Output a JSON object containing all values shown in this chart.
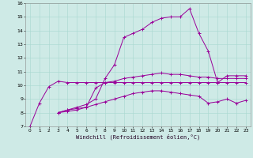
{
  "bg_color": "#ceeae6",
  "line_color": "#990099",
  "grid_color": "#a8d8d0",
  "xlabel": "Windchill (Refroidissement éolien,°C)",
  "xlim": [
    -0.5,
    23.5
  ],
  "ylim": [
    7,
    16
  ],
  "xticks": [
    0,
    1,
    2,
    3,
    4,
    5,
    6,
    7,
    8,
    9,
    10,
    11,
    12,
    13,
    14,
    15,
    16,
    17,
    18,
    19,
    20,
    21,
    22,
    23
  ],
  "yticks": [
    7,
    8,
    9,
    10,
    11,
    12,
    13,
    14,
    15,
    16
  ],
  "series": [
    {
      "x": [
        0,
        1,
        2,
        3,
        4,
        5,
        6,
        7,
        8,
        9,
        10,
        11,
        12,
        13,
        14,
        15,
        16,
        17,
        18,
        19,
        20,
        21,
        22,
        23
      ],
      "y": [
        7.0,
        8.7,
        9.9,
        10.3,
        10.2,
        10.2,
        10.2,
        10.2,
        10.2,
        10.2,
        10.2,
        10.2,
        10.2,
        10.2,
        10.2,
        10.2,
        10.2,
        10.2,
        10.2,
        10.2,
        10.2,
        10.2,
        10.2,
        10.2
      ]
    },
    {
      "x": [
        3,
        4,
        5,
        6,
        7,
        8,
        9,
        10,
        11,
        12,
        13,
        14,
        15,
        16,
        17,
        18,
        19,
        20,
        21,
        22,
        23
      ],
      "y": [
        8.0,
        8.2,
        8.4,
        8.6,
        9.0,
        10.5,
        11.5,
        13.5,
        13.8,
        14.1,
        14.6,
        14.9,
        15.0,
        15.0,
        15.6,
        13.8,
        12.5,
        10.2,
        10.7,
        10.7,
        10.7
      ]
    },
    {
      "x": [
        3,
        4,
        5,
        6,
        7,
        8,
        9,
        10,
        11,
        12,
        13,
        14,
        15,
        16,
        17,
        18,
        19,
        20,
        21,
        22,
        23
      ],
      "y": [
        8.0,
        8.1,
        8.2,
        8.4,
        9.8,
        10.2,
        10.3,
        10.5,
        10.6,
        10.7,
        10.8,
        10.9,
        10.8,
        10.8,
        10.7,
        10.6,
        10.6,
        10.5,
        10.5,
        10.5,
        10.5
      ]
    },
    {
      "x": [
        3,
        4,
        5,
        6,
        7,
        8,
        9,
        10,
        11,
        12,
        13,
        14,
        15,
        16,
        17,
        18,
        19,
        20,
        21,
        22,
        23
      ],
      "y": [
        8.0,
        8.2,
        8.3,
        8.4,
        8.6,
        8.8,
        9.0,
        9.2,
        9.4,
        9.5,
        9.6,
        9.6,
        9.5,
        9.4,
        9.3,
        9.2,
        8.7,
        8.8,
        9.0,
        8.7,
        8.9
      ]
    }
  ]
}
